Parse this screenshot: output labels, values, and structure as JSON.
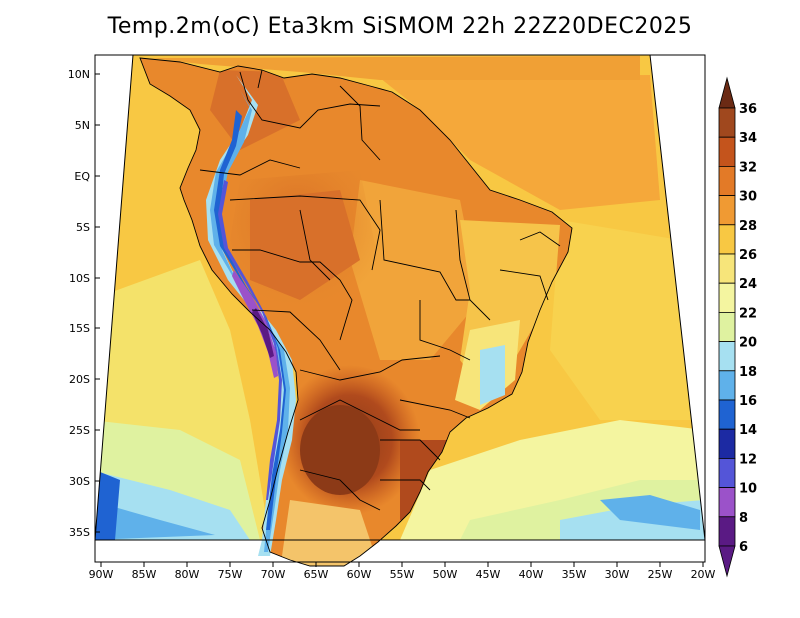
{
  "title": "Temp.2m(oC) Eta3km SiSMOM 22h 22Z20DEC2025",
  "map": {
    "variable": "2 m temperature",
    "units": "oC",
    "region": "South America",
    "lat_ticks": [
      "10N",
      "5N",
      "EQ",
      "5S",
      "10S",
      "15S",
      "20S",
      "25S",
      "30S",
      "35S"
    ],
    "lon_ticks": [
      "90W",
      "85W",
      "80W",
      "75W",
      "70W",
      "65W",
      "60W",
      "55W",
      "50W",
      "45W",
      "40W",
      "35W",
      "30W",
      "25W",
      "20W"
    ]
  },
  "colorbar": {
    "labels": [
      "36",
      "34",
      "32",
      "30",
      "28",
      "26",
      "24",
      "22",
      "20",
      "18",
      "16",
      "14",
      "12",
      "10",
      "8",
      "6"
    ],
    "colors_top_to_bottom": [
      "#6b2a14",
      "#a0481e",
      "#c4541c",
      "#e37a27",
      "#f09a33",
      "#f8c843",
      "#f7e57a",
      "#f4f5a0",
      "#dff2a0",
      "#a6e0f1",
      "#5fb1ea",
      "#1f63d2",
      "#1c2aa3",
      "#5455d8",
      "#9b52c9",
      "#5a1a84"
    ],
    "top_arrow_color": "#6b2a14",
    "bottom_arrow_color": "#5a1a84"
  }
}
